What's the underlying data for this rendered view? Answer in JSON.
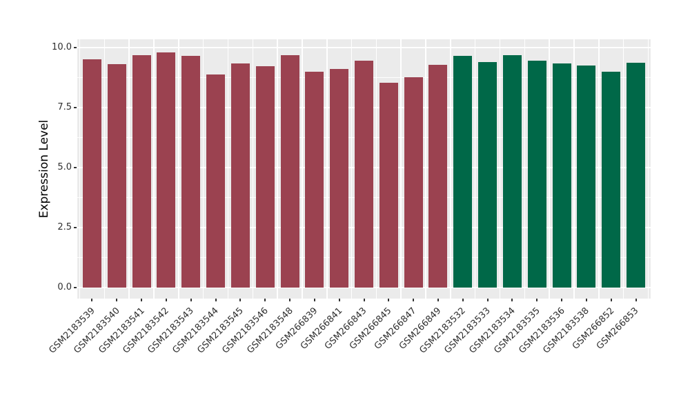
{
  "chart_data": {
    "type": "bar",
    "title": "",
    "xlabel": "",
    "ylabel": "Expression Level",
    "categories": [
      "GSM2183539",
      "GSM2183540",
      "GSM2183541",
      "GSM2183542",
      "GSM2183543",
      "GSM2183544",
      "GSM2183545",
      "GSM2183546",
      "GSM2183548",
      "GSM266839",
      "GSM266841",
      "GSM266843",
      "GSM266845",
      "GSM266847",
      "GSM266849",
      "GSM2183532",
      "GSM2183533",
      "GSM2183534",
      "GSM2183535",
      "GSM2183536",
      "GSM2183538",
      "GSM266852",
      "GSM266853"
    ],
    "values": [
      9.5,
      9.3,
      9.67,
      9.8,
      9.64,
      8.87,
      9.33,
      9.23,
      9.67,
      9.0,
      9.1,
      9.45,
      8.52,
      8.77,
      9.27,
      9.65,
      9.4,
      9.67,
      9.46,
      9.34,
      9.25,
      8.99,
      9.37
    ],
    "groups": [
      0,
      0,
      0,
      0,
      0,
      0,
      0,
      0,
      0,
      0,
      0,
      0,
      0,
      0,
      0,
      1,
      1,
      1,
      1,
      1,
      1,
      1,
      1
    ],
    "group_colors": [
      "#9B4250",
      "#006848"
    ],
    "y_tick_labels": [
      "0.0",
      "2.5",
      "5.0",
      "7.5",
      "10.0"
    ],
    "y_tick_values": [
      0,
      2.5,
      5,
      7.5,
      10
    ],
    "y_minor_values": [
      1.25,
      3.75,
      6.25,
      8.75
    ],
    "ylim": [
      -0.46,
      10.34
    ],
    "grid": true,
    "legend": "none",
    "panel_background": "#EBEBEB",
    "gridline_color": "#FFFFFF"
  }
}
